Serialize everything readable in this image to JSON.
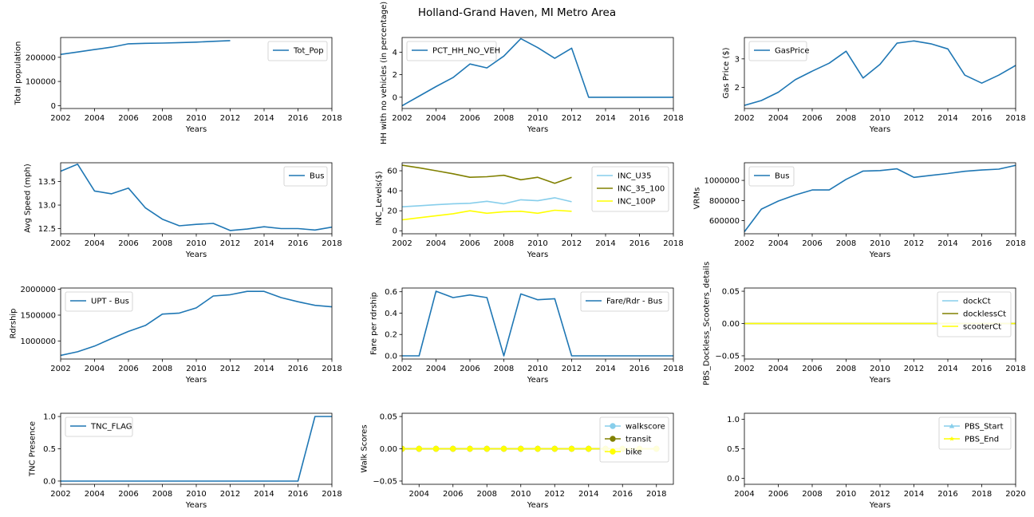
{
  "figure": {
    "title": "Holland-Grand Haven, MI Metro Area"
  },
  "colors": {
    "blue": "#1f77b4",
    "skyblue": "#87ceeb",
    "olive": "#808000",
    "yellow": "#ffff00"
  },
  "chart_data": [
    {
      "id": "pop",
      "type": "line",
      "xlabel": "Years",
      "ylabel": "Total population",
      "xlim": [
        2002,
        2018
      ],
      "ylim": [
        -12000,
        282000
      ],
      "xticks": [
        2002,
        2004,
        2006,
        2008,
        2010,
        2012,
        2014,
        2016,
        2018
      ],
      "yticks": [
        0,
        100000,
        200000
      ],
      "ytick_labels": [
        "0",
        "100000",
        "200000"
      ],
      "legend": "upper right",
      "series": [
        {
          "name": "Tot_Pop",
          "color": "#1f77b4",
          "marker": "none",
          "x": [
            2002,
            2003,
            2004,
            2005,
            2006,
            2007,
            2008,
            2009,
            2010,
            2011,
            2012
          ],
          "y": [
            212000,
            222000,
            232000,
            242000,
            256000,
            258000,
            259000,
            261000,
            263000,
            266000,
            269000
          ]
        }
      ]
    },
    {
      "id": "noveh",
      "type": "line",
      "xlabel": "Years",
      "ylabel": "HH with no vehicles (in percentage)",
      "xlim": [
        2002,
        2018
      ],
      "ylim": [
        -1.0,
        5.3
      ],
      "xticks": [
        2002,
        2004,
        2006,
        2008,
        2010,
        2012,
        2014,
        2016,
        2018
      ],
      "yticks": [
        0,
        2,
        4
      ],
      "ytick_labels": [
        "0",
        "2",
        "4"
      ],
      "legend": "upper left",
      "series": [
        {
          "name": "PCT_HH_NO_VEH",
          "color": "#1f77b4",
          "marker": "none",
          "x": [
            2002,
            2003,
            2004,
            2005,
            2006,
            2007,
            2008,
            2009,
            2010,
            2011,
            2012,
            2013,
            2014,
            2015,
            2016,
            2017,
            2018
          ],
          "y": [
            -0.75,
            0.1,
            0.95,
            1.75,
            2.95,
            2.6,
            3.65,
            5.2,
            4.4,
            3.45,
            4.35,
            0,
            0,
            0,
            0,
            0,
            0
          ]
        }
      ]
    },
    {
      "id": "gas",
      "type": "line",
      "xlabel": "Years",
      "ylabel": "Gas Price ($)",
      "xlim": [
        2002,
        2018
      ],
      "ylim": [
        1.26,
        3.75
      ],
      "xticks": [
        2002,
        2004,
        2006,
        2008,
        2010,
        2012,
        2014,
        2016,
        2018
      ],
      "yticks": [
        2,
        3
      ],
      "ytick_labels": [
        "2",
        "3"
      ],
      "legend": "upper left",
      "series": [
        {
          "name": "GasPrice",
          "color": "#1f77b4",
          "marker": "none",
          "x": [
            2002,
            2003,
            2004,
            2005,
            2006,
            2007,
            2008,
            2009,
            2010,
            2011,
            2012,
            2013,
            2014,
            2015,
            2016,
            2017,
            2018
          ],
          "y": [
            1.37,
            1.54,
            1.83,
            2.27,
            2.57,
            2.85,
            3.27,
            2.33,
            2.81,
            3.55,
            3.63,
            3.53,
            3.35,
            2.43,
            2.15,
            2.43,
            2.77
          ]
        }
      ]
    },
    {
      "id": "speed",
      "type": "line",
      "xlabel": "Years",
      "ylabel": "Avg Speed (mph)",
      "xlim": [
        2002,
        2018
      ],
      "ylim": [
        12.39,
        13.9
      ],
      "xticks": [
        2002,
        2004,
        2006,
        2008,
        2010,
        2012,
        2014,
        2016,
        2018
      ],
      "yticks": [
        12.5,
        13.0,
        13.5
      ],
      "ytick_labels": [
        "12.5",
        "13.0",
        "13.5"
      ],
      "legend": "upper right",
      "series": [
        {
          "name": "Bus",
          "color": "#1f77b4",
          "marker": "none",
          "x": [
            2002,
            2003,
            2004,
            2005,
            2006,
            2007,
            2008,
            2009,
            2010,
            2011,
            2012,
            2013,
            2014,
            2015,
            2016,
            2017,
            2018
          ],
          "y": [
            13.72,
            13.87,
            13.3,
            13.24,
            13.36,
            12.94,
            12.7,
            12.56,
            12.59,
            12.61,
            12.46,
            12.49,
            12.54,
            12.5,
            12.5,
            12.47,
            12.53
          ]
        }
      ]
    },
    {
      "id": "inc",
      "type": "line",
      "xlabel": "Years",
      "ylabel": "INC_Levels($)",
      "xlim": [
        2002,
        2018
      ],
      "ylim": [
        -3,
        68
      ],
      "xticks": [
        2002,
        2004,
        2006,
        2008,
        2010,
        2012,
        2014,
        2016,
        2018
      ],
      "yticks": [
        0,
        20,
        40,
        60
      ],
      "ytick_labels": [
        "0",
        "20",
        "40",
        "60"
      ],
      "legend": "upper right",
      "series": [
        {
          "name": "INC_U35",
          "color": "#87ceeb",
          "marker": "none",
          "x": [
            2002,
            2003,
            2004,
            2005,
            2006,
            2007,
            2008,
            2009,
            2010,
            2011,
            2012
          ],
          "y": [
            24,
            25,
            26,
            27,
            27.5,
            29.5,
            27,
            31,
            30,
            33,
            29
          ]
        },
        {
          "name": "INC_35_100",
          "color": "#808000",
          "marker": "none",
          "x": [
            2002,
            2003,
            2004,
            2005,
            2006,
            2007,
            2008,
            2009,
            2010,
            2011,
            2012
          ],
          "y": [
            65.5,
            63,
            60,
            57,
            53.5,
            54,
            55.5,
            51,
            53.5,
            47.5,
            53.5
          ]
        },
        {
          "name": "INC_100P",
          "color": "#ffff00",
          "marker": "none",
          "x": [
            2002,
            2003,
            2004,
            2005,
            2006,
            2007,
            2008,
            2009,
            2010,
            2011,
            2012
          ],
          "y": [
            11,
            13,
            15,
            17,
            20,
            17.5,
            19,
            19.5,
            17.5,
            20.5,
            19.5
          ]
        }
      ]
    },
    {
      "id": "vrm",
      "type": "line",
      "xlabel": "Years",
      "ylabel": "VRMs",
      "xlim": [
        2002,
        2018
      ],
      "ylim": [
        470000,
        1175000
      ],
      "xticks": [
        2002,
        2004,
        2006,
        2008,
        2010,
        2012,
        2014,
        2016,
        2018
      ],
      "yticks": [
        600000,
        800000,
        1000000
      ],
      "ytick_labels": [
        "600000",
        "800000",
        "1000000"
      ],
      "legend": "upper left",
      "series": [
        {
          "name": "Bus",
          "color": "#1f77b4",
          "marker": "none",
          "x": [
            2002,
            2003,
            2004,
            2005,
            2006,
            2007,
            2008,
            2009,
            2010,
            2011,
            2012,
            2013,
            2014,
            2015,
            2016,
            2017,
            2018
          ],
          "y": [
            490000,
            715000,
            795000,
            855000,
            905000,
            905000,
            1010000,
            1093000,
            1097000,
            1115000,
            1030000,
            1050000,
            1068000,
            1090000,
            1103000,
            1112000,
            1150000
          ]
        }
      ]
    },
    {
      "id": "upt",
      "type": "line",
      "xlabel": "Years",
      "ylabel": "Rdrship",
      "xlim": [
        2002,
        2018
      ],
      "ylim": [
        650000,
        2025000
      ],
      "xticks": [
        2002,
        2004,
        2006,
        2008,
        2010,
        2012,
        2014,
        2016,
        2018
      ],
      "yticks": [
        1000000,
        1500000,
        2000000
      ],
      "ytick_labels": [
        "1000000",
        "1500000",
        "2000000"
      ],
      "legend": "upper left",
      "series": [
        {
          "name": "UPT - Bus",
          "color": "#1f77b4",
          "marker": "none",
          "x": [
            2002,
            2003,
            2004,
            2005,
            2006,
            2007,
            2008,
            2009,
            2010,
            2011,
            2012,
            2013,
            2014,
            2015,
            2016,
            2017,
            2018
          ],
          "y": [
            720000,
            790000,
            900000,
            1045000,
            1185000,
            1300000,
            1520000,
            1540000,
            1640000,
            1870000,
            1895000,
            1960000,
            1960000,
            1840000,
            1760000,
            1690000,
            1660000
          ]
        }
      ]
    },
    {
      "id": "fare",
      "type": "line",
      "xlabel": "Years",
      "ylabel": "Fare per rdrship",
      "xlim": [
        2002,
        2018
      ],
      "ylim": [
        -0.03,
        0.635
      ],
      "xticks": [
        2002,
        2004,
        2006,
        2008,
        2010,
        2012,
        2014,
        2016,
        2018
      ],
      "yticks": [
        0.0,
        0.2,
        0.4,
        0.6
      ],
      "ytick_labels": [
        "0.0",
        "0.2",
        "0.4",
        "0.6"
      ],
      "legend": "upper right",
      "series": [
        {
          "name": "Fare/Rdr - Bus",
          "color": "#1f77b4",
          "marker": "none",
          "x": [
            2002,
            2003,
            2004,
            2005,
            2006,
            2007,
            2008,
            2009,
            2010,
            2011,
            2012,
            2013,
            2014,
            2015,
            2016,
            2017,
            2018
          ],
          "y": [
            0,
            0,
            0.605,
            0.545,
            0.57,
            0.545,
            0,
            0.58,
            0.525,
            0.535,
            0,
            0,
            0,
            0,
            0,
            0,
            0
          ]
        }
      ]
    },
    {
      "id": "pbs",
      "type": "line",
      "xlabel": "Years",
      "ylabel": "PBS_Dockless_Scooters_details",
      "xlim": [
        2002,
        2018
      ],
      "ylim": [
        -0.055,
        0.055
      ],
      "xticks": [
        2002,
        2004,
        2006,
        2008,
        2010,
        2012,
        2014,
        2016,
        2018
      ],
      "yticks": [
        -0.05,
        0.0,
        0.05
      ],
      "ytick_labels": [
        "−0.05",
        "0.00",
        "0.05"
      ],
      "legend": "upper right",
      "series": [
        {
          "name": "dockCt",
          "color": "#87ceeb",
          "marker": "none",
          "x": [
            2002,
            2018
          ],
          "y": [
            0,
            0
          ]
        },
        {
          "name": "docklessCt",
          "color": "#808000",
          "marker": "none",
          "x": [
            2002,
            2018
          ],
          "y": [
            0,
            0
          ]
        },
        {
          "name": "scooterCt",
          "color": "#ffff00",
          "marker": "none",
          "x": [
            2002,
            2018
          ],
          "y": [
            0,
            0
          ]
        }
      ]
    },
    {
      "id": "tnc",
      "type": "line",
      "xlabel": "Years",
      "ylabel": "TNC Presence",
      "xlim": [
        2002,
        2018
      ],
      "ylim": [
        -0.05,
        1.05
      ],
      "xticks": [
        2002,
        2004,
        2006,
        2008,
        2010,
        2012,
        2014,
        2016,
        2018
      ],
      "yticks": [
        0.0,
        0.5,
        1.0
      ],
      "ytick_labels": [
        "0.0",
        "0.5",
        "1.0"
      ],
      "legend": "upper left",
      "series": [
        {
          "name": "TNC_FLAG",
          "color": "#1f77b4",
          "marker": "none",
          "x": [
            2002,
            2003,
            2004,
            2005,
            2006,
            2007,
            2008,
            2009,
            2010,
            2011,
            2012,
            2013,
            2014,
            2015,
            2016,
            2017,
            2018
          ],
          "y": [
            0,
            0,
            0,
            0,
            0,
            0,
            0,
            0,
            0,
            0,
            0,
            0,
            0,
            0,
            0,
            1,
            1
          ]
        }
      ]
    },
    {
      "id": "walk",
      "type": "line",
      "xlabel": "Years",
      "ylabel": "Walk Scores",
      "xlim": [
        2003,
        2019
      ],
      "ylim": [
        -0.055,
        0.055
      ],
      "xticks": [
        2004,
        2006,
        2008,
        2010,
        2012,
        2014,
        2016,
        2018
      ],
      "yticks": [
        -0.05,
        0.0,
        0.05
      ],
      "ytick_labels": [
        "−0.05",
        "0.00",
        "0.05"
      ],
      "legend": "upper right",
      "series": [
        {
          "name": "walkscore",
          "color": "#87ceeb",
          "marker": "circle",
          "x": [
            2003,
            2004,
            2005,
            2006,
            2007,
            2008,
            2009,
            2010,
            2011,
            2012,
            2013,
            2014,
            2015,
            2016,
            2017,
            2018
          ],
          "y": [
            0,
            0,
            0,
            0,
            0,
            0,
            0,
            0,
            0,
            0,
            0,
            0,
            0,
            0,
            0,
            0
          ]
        },
        {
          "name": "transit",
          "color": "#808000",
          "marker": "circle",
          "x": [
            2003,
            2004,
            2005,
            2006,
            2007,
            2008,
            2009,
            2010,
            2011,
            2012,
            2013,
            2014,
            2015,
            2016,
            2017,
            2018
          ],
          "y": [
            0,
            0,
            0,
            0,
            0,
            0,
            0,
            0,
            0,
            0,
            0,
            0,
            0,
            0,
            0,
            0
          ]
        },
        {
          "name": "bike",
          "color": "#ffff00",
          "marker": "circle",
          "x": [
            2003,
            2004,
            2005,
            2006,
            2007,
            2008,
            2009,
            2010,
            2011,
            2012,
            2013,
            2014,
            2015,
            2016,
            2017,
            2018
          ],
          "y": [
            0,
            0,
            0,
            0,
            0,
            0,
            0,
            0,
            0,
            0,
            0,
            0,
            0,
            0,
            0,
            0
          ]
        }
      ]
    },
    {
      "id": "pbsse",
      "type": "line",
      "xlabel": "Years",
      "ylabel": "",
      "xlim": [
        2004,
        2020
      ],
      "ylim": [
        -0.1,
        1.1
      ],
      "xticks": [
        2004,
        2006,
        2008,
        2010,
        2012,
        2014,
        2016,
        2018,
        2020
      ],
      "yticks": [
        0.0,
        0.5,
        1.0
      ],
      "ytick_labels": [
        "0.0",
        "0.5",
        "1.0"
      ],
      "legend": "upper right",
      "series": [
        {
          "name": "PBS_Start",
          "color": "#87ceeb",
          "marker": "triangle",
          "x": [],
          "y": []
        },
        {
          "name": "PBS_End",
          "color": "#ffff00",
          "marker": "star",
          "x": [],
          "y": []
        }
      ]
    }
  ]
}
